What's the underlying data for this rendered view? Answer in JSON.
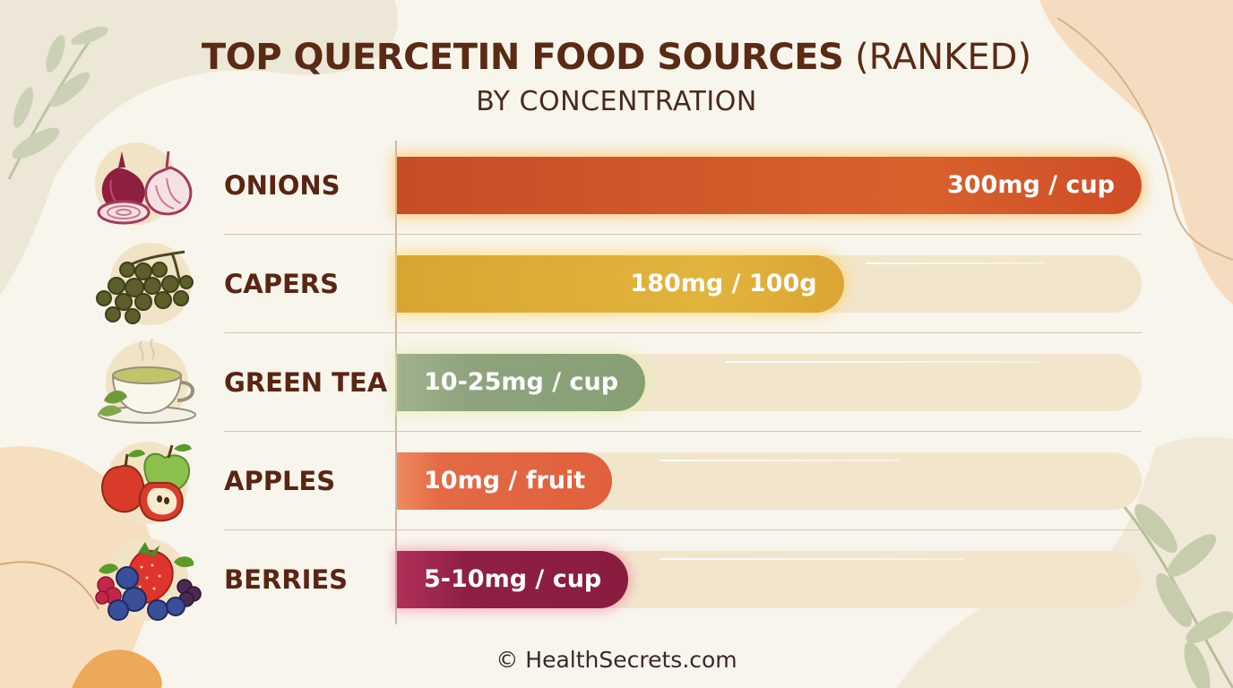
{
  "title": {
    "bold": "TOP QUERCETIN FOOD SOURCES",
    "light": "(RANKED)",
    "subtitle": "BY CONCENTRATION"
  },
  "credit": "© HealthSecrets.com",
  "icons": [
    "onion-icon",
    "capers-icon",
    "green-tea-icon",
    "apple-icon",
    "berries-icon"
  ],
  "colors": {
    "onions": "#c9532a",
    "capers": "#dba935",
    "green_tea": "#8ea37d",
    "apples": "#e36a45",
    "berries": "#8f1f45",
    "track": "#f1e6cc",
    "text": "#5a2512"
  },
  "chart_data": {
    "type": "bar",
    "orientation": "horizontal",
    "title": "TOP QUERCETIN FOOD SOURCES (RANKED)",
    "subtitle": "BY CONCENTRATION",
    "categories": [
      "ONIONS",
      "CAPERS",
      "GREEN TEA",
      "APPLES",
      "BERRIES"
    ],
    "values": [
      300,
      180,
      25,
      10,
      10
    ],
    "data_labels": [
      "300mg / cup",
      "180mg / 100g",
      "10-25mg / cup",
      "10mg / fruit",
      "5-10mg / cup"
    ],
    "xlim": [
      0,
      300
    ],
    "grid": false,
    "legend": "none"
  }
}
